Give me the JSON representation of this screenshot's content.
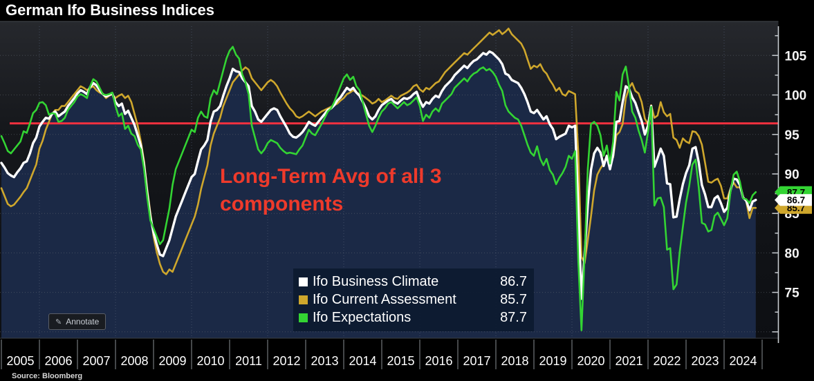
{
  "title": "German Ifo Business Indices",
  "source": "Source: Bloomberg",
  "annotate_button": {
    "label": "Annotate"
  },
  "annotation": {
    "line1": "Long-Term Avg of all 3",
    "line2": "components",
    "color": "#ee3a2b"
  },
  "axis_tags": [
    {
      "value": "85.7",
      "color": "#cfa72c"
    },
    {
      "value": "87.7",
      "color": "#33d433"
    },
    {
      "value": "86.7",
      "color": "#ffffff"
    }
  ],
  "chart_data": {
    "type": "line",
    "title": "German Ifo Business Indices",
    "x_start": "2005-01",
    "x_end": "2024-11",
    "x_axis_years": [
      "2005",
      "2006",
      "2007",
      "2008",
      "2009",
      "2010",
      "2011",
      "2012",
      "2013",
      "2014",
      "2015",
      "2016",
      "2017",
      "2018",
      "2019",
      "2020",
      "2021",
      "2022",
      "2023",
      "2024"
    ],
    "y_ticks": [
      105,
      100,
      95,
      90,
      85,
      80,
      75
    ],
    "ylim": [
      69.2,
      108.7
    ],
    "grid": "dotted",
    "legend_position": "bottom-center",
    "area_fill_color": "#1b2946",
    "reference_line": {
      "value": 96.4,
      "color": "#f5313f",
      "label": "Long-Term Avg of all 3 components"
    },
    "legend": {
      "entries": [
        {
          "label": "Ifo Business Climate",
          "value": "86.7"
        },
        {
          "label": "Ifo Current Assessment",
          "value": "85.7"
        },
        {
          "label": "Ifo Expectations",
          "value": "87.7"
        }
      ]
    },
    "series": [
      {
        "name": "Ifo Business Climate",
        "color": "#ffffff",
        "last_value": 86.7,
        "values": [
          91.4,
          90.8,
          90.1,
          89.8,
          89.6,
          90.2,
          90.7,
          91.4,
          91.6,
          92.6,
          93.9,
          94.6,
          96.0,
          96.6,
          97.1,
          97.0,
          97.6,
          97.9,
          97.3,
          97.6,
          97.9,
          98.6,
          99.1,
          99.6,
          100.2,
          100.6,
          100.4,
          100.1,
          101.0,
          101.5,
          101.2,
          100.6,
          100.1,
          99.8,
          100.0,
          100.2,
          99.1,
          98.6,
          98.9,
          97.6,
          98.0,
          97.1,
          96.2,
          94.9,
          93.6,
          91.1,
          87.6,
          84.6,
          82.6,
          81.1,
          79.8,
          79.6,
          80.6,
          81.6,
          83.1,
          84.6,
          85.6,
          86.6,
          87.6,
          88.6,
          89.6,
          90.0,
          91.6,
          93.1,
          93.6,
          94.3,
          96.6,
          97.9,
          98.1,
          98.6,
          99.9,
          101.1,
          102.1,
          103.3,
          103.0,
          102.9,
          102.1,
          101.6,
          101.1,
          98.6,
          97.9,
          96.9,
          96.6,
          97.1,
          97.6,
          98.1,
          98.3,
          98.1,
          97.3,
          96.6,
          95.9,
          95.1,
          94.7,
          94.6,
          94.9,
          95.3,
          95.9,
          96.6,
          96.3,
          96.1,
          96.6,
          97.1,
          97.6,
          98.1,
          98.3,
          98.7,
          99.3,
          99.7,
          100.3,
          100.9,
          100.6,
          100.9,
          100.3,
          99.9,
          99.1,
          98.3,
          97.3,
          96.9,
          97.3,
          98.1,
          98.7,
          99.0,
          99.3,
          99.5,
          99.1,
          98.9,
          99.3,
          99.6,
          99.5,
          99.7,
          100.1,
          100.4,
          99.3,
          98.5,
          99.1,
          98.9,
          99.5,
          99.9,
          99.7,
          100.5,
          101.1,
          101.5,
          101.9,
          102.5,
          102.9,
          103.3,
          103.7,
          103.4,
          103.9,
          104.3,
          104.5,
          104.9,
          105.3,
          105.1,
          105.5,
          105.3,
          104.9,
          104.5,
          103.9,
          102.7,
          102.5,
          101.9,
          101.7,
          101.5,
          100.9,
          100.1,
          99.1,
          97.9,
          97.7,
          98.1,
          97.5,
          96.9,
          97.3,
          96.3,
          95.7,
          94.4,
          94.7,
          94.9,
          95.1,
          96.1,
          95.9,
          96.1,
          85.6,
          74.2,
          79.9,
          86.1,
          90.5,
          92.6,
          93.3,
          92.7,
          91.0,
          92.3,
          90.6,
          92.4,
          96.6,
          96.7,
          99.1,
          101.1,
          100.8,
          99.7,
          99.0,
          97.8,
          96.7,
          95.0,
          96.1,
          98.6,
          90.9,
          92.0,
          93.2,
          92.3,
          88.8,
          88.7,
          84.5,
          84.6,
          86.8,
          88.7,
          90.1,
          91.1,
          93.2,
          93.4,
          91.5,
          88.6,
          87.4,
          85.8,
          85.8,
          86.9,
          87.2,
          86.3,
          85.2,
          85.7,
          87.9,
          89.4,
          89.3,
          88.6,
          87.0,
          86.6,
          85.4,
          86.5,
          86.7
        ]
      },
      {
        "name": "Ifo Current Assessment",
        "color": "#cfa72c",
        "last_value": 85.7,
        "values": [
          88.2,
          87.2,
          86.2,
          85.9,
          86.1,
          86.6,
          87.1,
          87.7,
          88.2,
          89.2,
          90.2,
          91.2,
          93.2,
          94.2,
          95.6,
          96.6,
          97.6,
          98.1,
          98.1,
          98.6,
          98.6,
          99.1,
          99.6,
          100.1,
          100.6,
          101.1,
          100.9,
          100.6,
          100.9,
          101.1,
          100.6,
          100.3,
          100.1,
          99.6,
          99.9,
          100.1,
          99.6,
          99.9,
          100.1,
          99.6,
          99.9,
          99.1,
          97.6,
          96.1,
          94.1,
          91.6,
          88.1,
          85.1,
          82.1,
          80.1,
          78.6,
          77.6,
          77.3,
          77.9,
          77.6,
          78.6,
          79.6,
          80.6,
          81.6,
          82.6,
          83.6,
          84.6,
          86.1,
          88.1,
          89.6,
          91.1,
          93.6,
          95.1,
          96.1,
          97.1,
          98.6,
          99.6,
          100.6,
          101.6,
          102.1,
          102.6,
          103.1,
          103.5,
          103.2,
          102.1,
          101.6,
          101.1,
          100.6,
          101.1,
          101.6,
          101.9,
          101.6,
          101.1,
          100.3,
          99.6,
          98.9,
          98.3,
          97.9,
          97.3,
          97.1,
          97.3,
          97.6,
          97.9,
          97.6,
          97.3,
          97.6,
          97.9,
          98.1,
          98.3,
          98.5,
          98.7,
          98.9,
          99.3,
          99.6,
          100.1,
          100.3,
          100.6,
          100.3,
          100.1,
          99.9,
          99.6,
          99.3,
          98.9,
          99.1,
          99.5,
          99.1,
          99.3,
          99.6,
          99.9,
          99.6,
          99.5,
          99.9,
          100.1,
          100.3,
          100.6,
          101.1,
          101.3,
          100.7,
          100.4,
          100.9,
          100.7,
          101.1,
          101.5,
          101.7,
          102.3,
          102.9,
          103.3,
          103.7,
          104.1,
          104.5,
          104.9,
          105.3,
          105.1,
          105.5,
          105.9,
          106.3,
          106.7,
          107.1,
          107.5,
          107.9,
          107.6,
          107.9,
          108.2,
          107.7,
          108.0,
          108.4,
          107.7,
          107.3,
          106.9,
          106.5,
          105.7,
          104.5,
          103.3,
          103.7,
          103.5,
          103.9,
          103.1,
          102.7,
          101.9,
          101.3,
          100.5,
          100.9,
          100.1,
          99.9,
          100.5,
          100.3,
          100.1,
          92.6,
          79.5,
          78.7,
          81.6,
          84.6,
          87.9,
          89.9,
          90.7,
          91.3,
          92.1,
          91.6,
          92.1,
          94.9,
          95.3,
          96.3,
          99.6,
          100.9,
          101.5,
          100.5,
          100.2,
          99.1,
          97.0,
          96.3,
          98.7,
          97.1,
          97.4,
          99.1,
          97.8,
          97.3,
          97.6,
          94.6,
          94.3,
          93.3,
          94.5,
          94.1,
          93.9,
          95.4,
          95.3,
          94.8,
          93.7,
          91.4,
          89.0,
          88.9,
          89.2,
          89.4,
          88.5,
          86.9,
          86.9,
          88.1,
          88.9,
          88.3,
          88.3,
          87.1,
          86.5,
          84.4,
          85.7,
          85.7
        ]
      },
      {
        "name": "Ifo Expectations",
        "color": "#33d433",
        "last_value": 87.7,
        "values": [
          94.8,
          93.9,
          92.9,
          92.6,
          93.1,
          93.6,
          94.1,
          95.4,
          95.2,
          96.4,
          97.7,
          98.1,
          99.0,
          99.1,
          98.7,
          97.5,
          97.7,
          97.6,
          96.6,
          96.7,
          97.1,
          98.1,
          98.6,
          99.1,
          99.8,
          100.1,
          99.9,
          99.6,
          101.1,
          102.0,
          101.7,
          100.9,
          100.1,
          100.0,
          100.1,
          100.3,
          98.6,
          97.3,
          97.7,
          95.7,
          96.1,
          95.1,
          94.8,
          93.7,
          93.1,
          90.6,
          87.1,
          84.1,
          83.1,
          82.1,
          81.1,
          81.6,
          83.6,
          85.6,
          88.6,
          90.6,
          91.6,
          92.6,
          93.6,
          94.6,
          95.6,
          95.3,
          97.1,
          97.9,
          97.3,
          97.1,
          99.6,
          100.6,
          100.1,
          101.6,
          103.1,
          104.6,
          105.6,
          106.1,
          105.1,
          104.6,
          102.6,
          101.6,
          100.1,
          96.1,
          94.6,
          93.1,
          92.6,
          93.1,
          93.9,
          94.3,
          94.1,
          93.9,
          93.3,
          92.9,
          92.6,
          92.7,
          92.6,
          92.5,
          93.1,
          93.6,
          94.6,
          95.6,
          95.1,
          94.9,
          95.6,
          96.3,
          97.1,
          97.9,
          98.3,
          99.1,
          100.1,
          101.1,
          102.1,
          102.6,
          101.9,
          102.3,
          101.1,
          100.6,
          99.1,
          97.6,
          96.1,
          95.3,
          96.1,
          97.1,
          97.9,
          98.3,
          98.9,
          99.1,
          98.7,
          98.3,
          98.7,
          99.1,
          98.7,
          98.9,
          99.3,
          99.7,
          98.6,
          96.7,
          97.5,
          97.1,
          97.9,
          98.3,
          97.9,
          98.9,
          99.3,
          99.7,
          100.1,
          100.9,
          101.3,
          101.7,
          102.1,
          101.7,
          102.3,
          102.7,
          102.9,
          103.3,
          103.5,
          103.1,
          103.3,
          102.9,
          102.3,
          101.3,
          100.5,
          98.7,
          97.9,
          97.5,
          97.1,
          96.9,
          96.1,
          94.9,
          93.7,
          92.7,
          92.3,
          93.5,
          91.9,
          91.1,
          91.9,
          90.5,
          89.9,
          88.7,
          89.5,
          90.1,
          90.9,
          92.3,
          91.9,
          92.9,
          78.9,
          70.2,
          79.6,
          90.6,
          96.3,
          96.6,
          96.1,
          94.9,
          92.3,
          93.6,
          91.3,
          94.1,
          100.4,
          99.3,
          102.6,
          103.6,
          101.1,
          97.9,
          97.1,
          95.5,
          94.3,
          92.7,
          95.3,
          98.5,
          86.0,
          86.9,
          87.0,
          85.8,
          80.4,
          80.6,
          75.4,
          76.0,
          80.1,
          83.3,
          86.4,
          88.5,
          91.2,
          91.8,
          88.3,
          83.8,
          83.6,
          82.7,
          82.9,
          84.7,
          85.1,
          84.3,
          83.5,
          84.4,
          87.7,
          89.9,
          90.3,
          89.0,
          86.9,
          86.8,
          86.3,
          87.3,
          87.7
        ]
      }
    ]
  }
}
